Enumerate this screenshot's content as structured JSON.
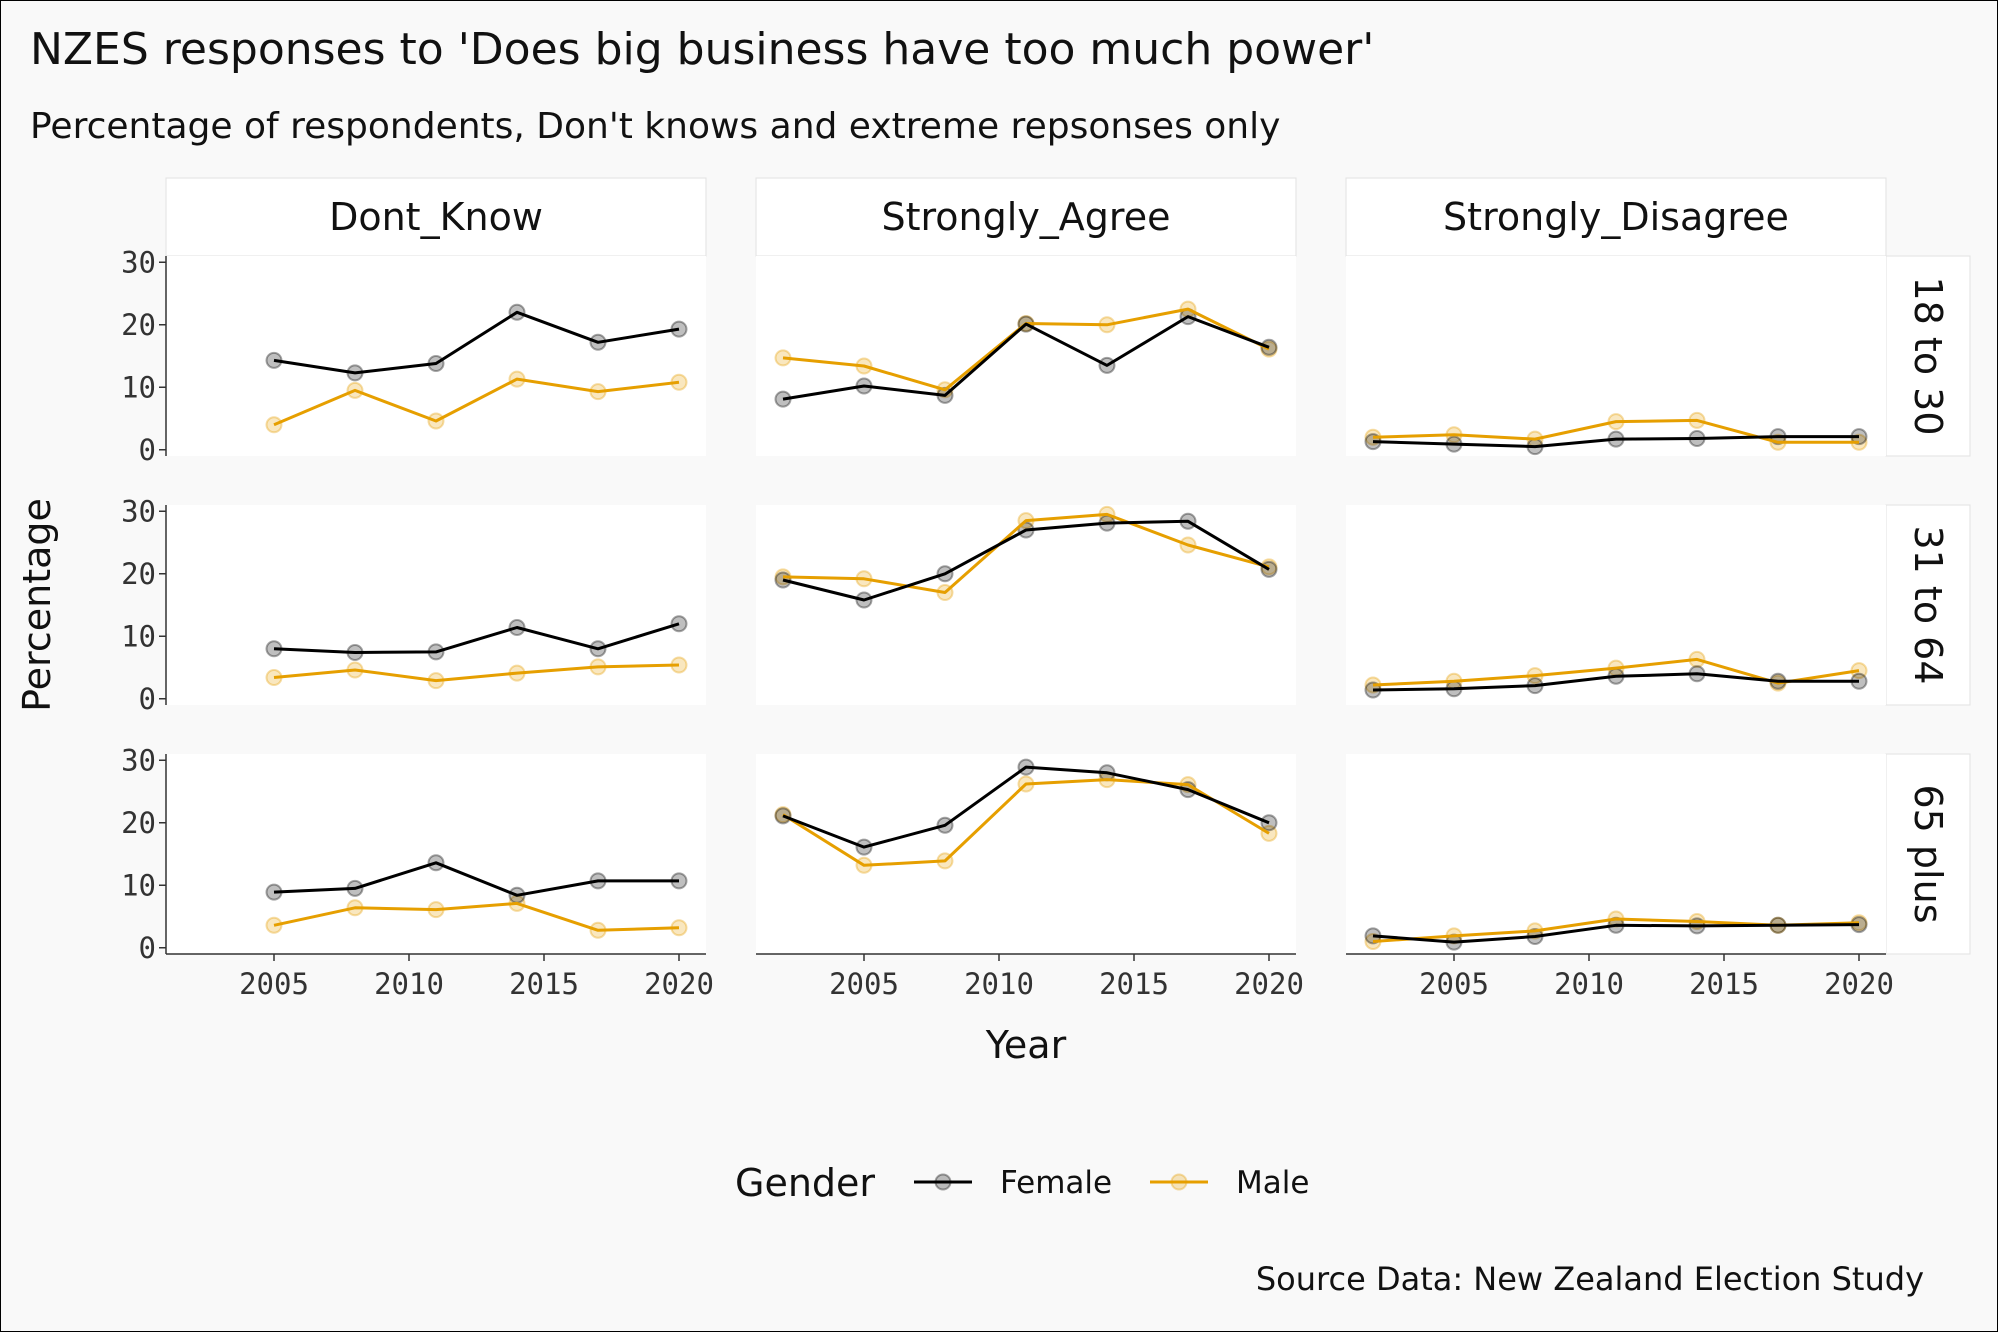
{
  "chart_data": {
    "type": "line",
    "title": "NZES responses to 'Does big business have too much power'",
    "subtitle": "Percentage of respondents, Don't knows and extreme repsonses only",
    "caption": "Source Data: New Zealand Election Study",
    "xlabel": "Year",
    "ylabel": "Percentage",
    "xlim": [
      2001,
      2021
    ],
    "ylim": [
      0,
      30
    ],
    "x_ticks": [
      2005,
      2010,
      2015,
      2020
    ],
    "y_ticks": [
      0,
      10,
      20,
      30
    ],
    "legend": {
      "title": "Gender",
      "position": "bottom"
    },
    "colors": {
      "Female": "#000000",
      "Male": "#e69f00"
    },
    "facet_columns": [
      "Dont_Know",
      "Strongly_Agree",
      "Strongly_Disagree"
    ],
    "facet_rows": [
      "18 to 30",
      "31 to 64",
      "65 plus"
    ],
    "panels": [
      {
        "column": "Dont_Know",
        "row": "18 to 30",
        "series": [
          {
            "name": "Female",
            "x": [
              2005,
              2008,
              2011,
              2014,
              2017,
              2020
            ],
            "values": [
              14.3,
              12.3,
              13.8,
              22.0,
              17.2,
              19.3
            ]
          },
          {
            "name": "Male",
            "x": [
              2005,
              2008,
              2011,
              2014,
              2017,
              2020
            ],
            "values": [
              4.0,
              9.5,
              4.6,
              11.3,
              9.3,
              10.8
            ]
          }
        ]
      },
      {
        "column": "Strongly_Agree",
        "row": "18 to 30",
        "series": [
          {
            "name": "Female",
            "x": [
              2002,
              2005,
              2008,
              2011,
              2014,
              2017,
              2020
            ],
            "values": [
              8.1,
              10.2,
              8.7,
              20.1,
              13.5,
              21.3,
              16.4
            ]
          },
          {
            "name": "Male",
            "x": [
              2002,
              2005,
              2008,
              2011,
              2014,
              2017,
              2020
            ],
            "values": [
              14.7,
              13.4,
              9.6,
              20.2,
              20.0,
              22.5,
              16.1
            ]
          }
        ]
      },
      {
        "column": "Strongly_Disagree",
        "row": "18 to 30",
        "series": [
          {
            "name": "Female",
            "x": [
              2002,
              2005,
              2008,
              2011,
              2014,
              2017,
              2020
            ],
            "values": [
              1.3,
              0.9,
              0.5,
              1.7,
              1.8,
              2.1,
              2.1
            ]
          },
          {
            "name": "Male",
            "x": [
              2002,
              2005,
              2008,
              2011,
              2014,
              2017,
              2020
            ],
            "values": [
              2.0,
              2.4,
              1.7,
              4.5,
              4.7,
              1.2,
              1.2
            ]
          }
        ]
      },
      {
        "column": "Dont_Know",
        "row": "31 to 64",
        "series": [
          {
            "name": "Female",
            "x": [
              2005,
              2008,
              2011,
              2014,
              2017,
              2020
            ],
            "values": [
              8.0,
              7.4,
              7.5,
              11.4,
              8.0,
              12.0
            ]
          },
          {
            "name": "Male",
            "x": [
              2005,
              2008,
              2011,
              2014,
              2017,
              2020
            ],
            "values": [
              3.4,
              4.6,
              2.9,
              4.1,
              5.1,
              5.4
            ]
          }
        ]
      },
      {
        "column": "Strongly_Agree",
        "row": "31 to 64",
        "series": [
          {
            "name": "Female",
            "x": [
              2002,
              2005,
              2008,
              2011,
              2014,
              2017,
              2020
            ],
            "values": [
              19.0,
              15.8,
              20.0,
              27.0,
              28.1,
              28.4,
              20.7
            ]
          },
          {
            "name": "Male",
            "x": [
              2002,
              2005,
              2008,
              2011,
              2014,
              2017,
              2020
            ],
            "values": [
              19.5,
              19.2,
              17.0,
              28.5,
              29.5,
              24.6,
              21.1
            ]
          }
        ]
      },
      {
        "column": "Strongly_Disagree",
        "row": "31 to 64",
        "series": [
          {
            "name": "Female",
            "x": [
              2002,
              2005,
              2008,
              2011,
              2014,
              2017,
              2020
            ],
            "values": [
              1.4,
              1.6,
              2.1,
              3.6,
              4.0,
              2.8,
              2.8
            ]
          },
          {
            "name": "Male",
            "x": [
              2002,
              2005,
              2008,
              2011,
              2014,
              2017,
              2020
            ],
            "values": [
              2.2,
              2.8,
              3.7,
              4.9,
              6.3,
              2.5,
              4.5
            ]
          }
        ]
      },
      {
        "column": "Dont_Know",
        "row": "65 plus",
        "series": [
          {
            "name": "Female",
            "x": [
              2005,
              2008,
              2011,
              2014,
              2017,
              2020
            ],
            "values": [
              8.9,
              9.5,
              13.6,
              8.4,
              10.7,
              10.7
            ]
          },
          {
            "name": "Male",
            "x": [
              2005,
              2008,
              2011,
              2014,
              2017,
              2020
            ],
            "values": [
              3.6,
              6.4,
              6.1,
              7.1,
              2.8,
              3.2
            ]
          }
        ]
      },
      {
        "column": "Strongly_Agree",
        "row": "65 plus",
        "series": [
          {
            "name": "Female",
            "x": [
              2002,
              2005,
              2008,
              2011,
              2014,
              2017,
              2020
            ],
            "values": [
              21.1,
              16.1,
              19.6,
              28.9,
              28.0,
              25.3,
              20.0
            ]
          },
          {
            "name": "Male",
            "x": [
              2002,
              2005,
              2008,
              2011,
              2014,
              2017,
              2020
            ],
            "values": [
              21.3,
              13.2,
              13.9,
              26.2,
              26.9,
              26.1,
              18.3
            ]
          }
        ]
      },
      {
        "column": "Strongly_Disagree",
        "row": "65 plus",
        "series": [
          {
            "name": "Female",
            "x": [
              2002,
              2005,
              2008,
              2011,
              2014,
              2017,
              2020
            ],
            "values": [
              1.9,
              0.9,
              1.8,
              3.6,
              3.5,
              3.6,
              3.7
            ]
          },
          {
            "name": "Male",
            "x": [
              2002,
              2005,
              2008,
              2011,
              2014,
              2017,
              2020
            ],
            "values": [
              1.0,
              1.9,
              2.7,
              4.6,
              4.2,
              3.6,
              4.0
            ]
          }
        ]
      }
    ]
  }
}
